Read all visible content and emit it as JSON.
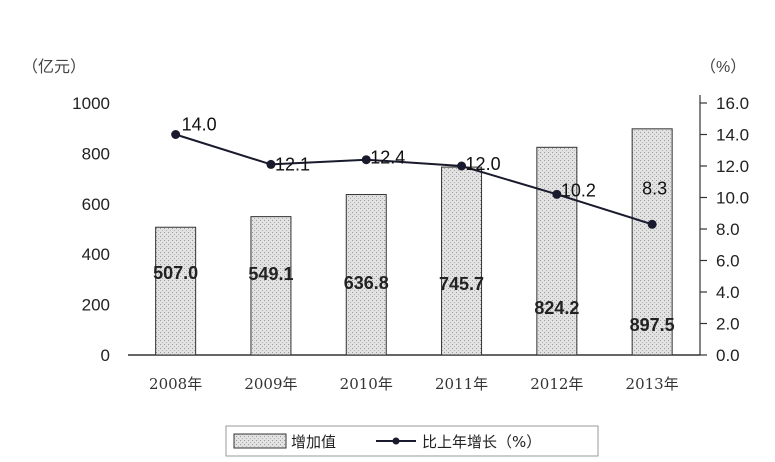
{
  "chart_data": {
    "type": "bar",
    "categories": [
      "2008年",
      "2009年",
      "2010年",
      "2011年",
      "2012年",
      "2013年"
    ],
    "series": [
      {
        "name": "增加值",
        "type": "bar",
        "axis": "left",
        "values": [
          507.0,
          549.1,
          636.8,
          745.7,
          824.2,
          897.5
        ]
      },
      {
        "name": "比上年增长",
        "type": "line",
        "axis": "right",
        "values": [
          14.0,
          12.1,
          12.4,
          12.0,
          10.2,
          8.3
        ]
      }
    ],
    "left_axis": {
      "unit": "（亿元）",
      "ylim": [
        0,
        1000
      ],
      "ticks": [
        "0",
        "200",
        "400",
        "600",
        "800",
        "1000"
      ]
    },
    "right_axis": {
      "unit": "（%）",
      "ylim": [
        0,
        16
      ],
      "ticks": [
        "0.0",
        "2.0",
        "4.0",
        "6.0",
        "8.0",
        "10.0",
        "12.0",
        "14.0",
        "16.0"
      ]
    },
    "bar_labels": [
      "507.0",
      "549.1",
      "636.8",
      "745.7",
      "824.2",
      "897.5"
    ],
    "line_labels": [
      "14.0",
      "12.1",
      "12.4",
      "12.0",
      "10.2",
      "8.3"
    ],
    "legend": {
      "placement": "bottom",
      "bar_label": "增加值",
      "line_label": "比上年增长（%）"
    },
    "grid": false,
    "colors": {
      "bar_fill": "#dcdcdc",
      "bar_stroke": "#333333",
      "line": "#1a1a2e",
      "axis": "#333333"
    }
  }
}
